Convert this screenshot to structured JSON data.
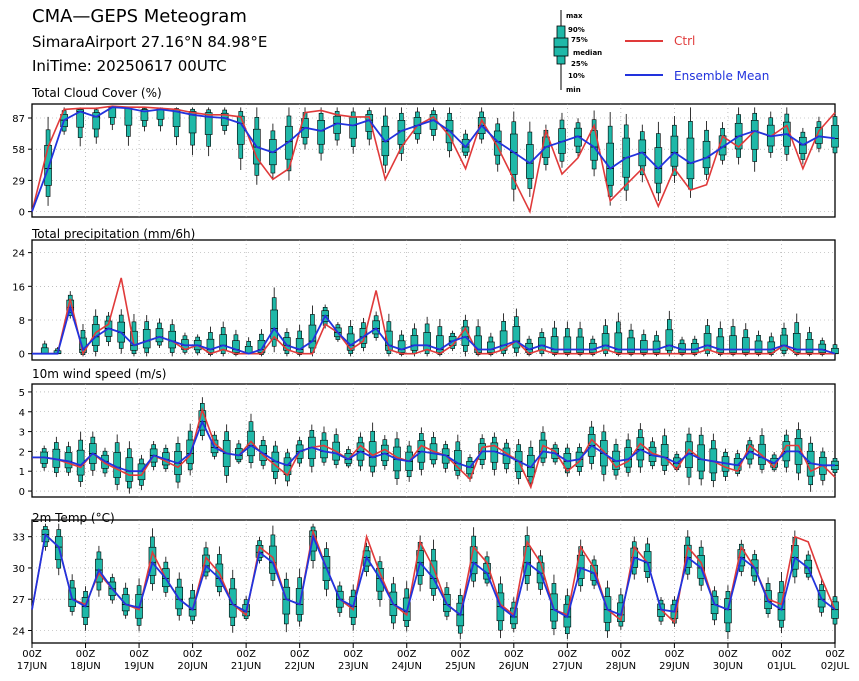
{
  "header": {
    "title": "CMA—GEPS Meteogram",
    "location": "SimaraAirport 27.16°N 84.98°E",
    "init_time": "IniTime: 20250617 00UTC"
  },
  "legend": {
    "ctrl": "Ctrl",
    "ensemble_mean": "Ensemble Mean",
    "box_labels": [
      "max",
      "90%",
      "75%",
      "median",
      "25%",
      "10%",
      "min"
    ],
    "ctrl_color": "#e03a3a",
    "mean_color": "#2233dd",
    "box_color": "#1fb8a8"
  },
  "x_axis": {
    "hours": [
      "00Z",
      "00Z",
      "00Z",
      "00Z",
      "00Z",
      "00Z",
      "00Z",
      "00Z",
      "00Z",
      "00Z",
      "00Z",
      "00Z",
      "00Z",
      "00Z",
      "00Z",
      "00Z"
    ],
    "dates": [
      "17JUN",
      "18JUN",
      "19JUN",
      "20JUN",
      "21JUN",
      "22JUN",
      "23JUN",
      "24JUN",
      "25JUN",
      "26JUN",
      "27JUN",
      "28JUN",
      "29JUN",
      "30JUN",
      "01JUL",
      "02JUL"
    ]
  },
  "chart_data": [
    {
      "type": "box",
      "title": "Total Cloud Cover (%)",
      "yticks": [
        0,
        29,
        58,
        87
      ],
      "ylim": [
        -5,
        100
      ],
      "ctrl": [
        0,
        60,
        95,
        96,
        96,
        98,
        97,
        97,
        96,
        95,
        92,
        90,
        90,
        88,
        50,
        30,
        40,
        92,
        94,
        90,
        88,
        88,
        30,
        60,
        80,
        88,
        70,
        40,
        85,
        60,
        30,
        0,
        75,
        35,
        50,
        80,
        10,
        25,
        40,
        5,
        40,
        20,
        25,
        70,
        60,
        75,
        70,
        80,
        40,
        75,
        92
      ],
      "mean": [
        0,
        40,
        85,
        93,
        88,
        97,
        96,
        93,
        95,
        93,
        90,
        88,
        87,
        82,
        60,
        55,
        65,
        78,
        75,
        82,
        80,
        85,
        65,
        75,
        80,
        85,
        75,
        60,
        80,
        65,
        55,
        45,
        60,
        65,
        70,
        60,
        40,
        50,
        55,
        40,
        55,
        45,
        50,
        60,
        70,
        75,
        70,
        72,
        62,
        70,
        68
      ]
    },
    {
      "type": "box",
      "title": "Total precipitation (mm/6h)",
      "yticks": [
        0,
        8,
        16,
        24
      ],
      "ylim": [
        -1.5,
        27
      ],
      "ctrl": [
        0,
        0,
        0,
        13,
        0,
        5,
        7,
        18,
        2,
        3,
        4,
        3,
        1,
        2,
        0,
        1,
        0,
        0,
        0,
        4,
        1,
        0,
        0,
        7,
        5,
        1,
        3,
        15,
        1,
        0,
        0,
        1,
        0,
        2,
        6,
        0,
        0,
        1,
        3,
        0,
        1,
        0,
        0,
        0,
        0,
        1,
        0,
        0,
        0,
        0,
        0,
        0,
        0,
        1,
        0,
        0,
        0,
        0,
        0,
        2,
        0,
        0,
        0,
        0
      ],
      "mean": [
        0,
        0,
        0,
        11,
        1,
        4,
        6,
        5,
        2,
        3,
        4,
        3,
        2,
        2,
        1,
        2,
        1,
        0,
        1,
        6,
        2,
        1,
        3,
        9,
        5,
        2,
        4,
        6,
        2,
        1,
        2,
        2,
        1,
        3,
        4,
        1,
        1,
        2,
        3,
        1,
        2,
        1,
        1,
        1,
        1,
        2,
        1,
        1,
        1,
        1,
        2,
        1,
        1,
        2,
        1,
        1,
        1,
        1,
        1,
        2,
        1,
        1,
        1,
        0
      ]
    },
    {
      "type": "box",
      "title": "10m wind speed (m/s)",
      "yticks": [
        0,
        1,
        2,
        3,
        4,
        5
      ],
      "ylim": [
        -0.3,
        5.4
      ],
      "ctrl": [
        1.7,
        1.7,
        1.6,
        1.4,
        1.2,
        1.9,
        1.4,
        1.1,
        0.8,
        0.8,
        1.8,
        1.5,
        1.2,
        1.8,
        4.1,
        2.4,
        1.9,
        1.8,
        2.5,
        1.8,
        1.3,
        0.8,
        2.0,
        2.2,
        2.3,
        2.0,
        1.6,
        2.3,
        1.8,
        2.1,
        1.7,
        1.5,
        2.3,
        2.0,
        1.8,
        1.2,
        0.6,
        2.2,
        2.3,
        1.9,
        1.5,
        0.2,
        2.3,
        2.0,
        1.0,
        1.5,
        2.6,
        2.0,
        1.2,
        1.5,
        2.4,
        1.9,
        1.7,
        1.1,
        2.1,
        1.6,
        1.5,
        1.2,
        1.0,
        2.3,
        1.8,
        1.2,
        2.3,
        2.3,
        1.0,
        1.3,
        0.7
      ],
      "mean": [
        1.7,
        1.7,
        1.6,
        1.5,
        1.3,
        1.9,
        1.5,
        1.2,
        1.0,
        1.0,
        1.8,
        1.6,
        1.4,
        1.9,
        3.5,
        2.2,
        1.9,
        1.8,
        2.3,
        1.9,
        1.5,
        1.3,
        2.0,
        2.2,
        2.0,
        1.9,
        1.6,
        2.0,
        1.7,
        1.9,
        1.6,
        1.5,
        2.0,
        1.9,
        1.8,
        1.4,
        1.2,
        2.0,
        2.0,
        1.8,
        1.5,
        1.2,
        2.0,
        1.9,
        1.5,
        1.6,
        2.3,
        1.9,
        1.5,
        1.6,
        2.1,
        1.8,
        1.7,
        1.4,
        1.9,
        1.6,
        1.5,
        1.4,
        1.3,
        2.0,
        1.7,
        1.4,
        2.0,
        2.0,
        1.4,
        1.3,
        1.3
      ]
    },
    {
      "type": "box",
      "title": "2m Temp (°C)",
      "yticks": [
        24,
        27,
        30,
        33
      ],
      "ylim": [
        22.8,
        34.6
      ],
      "ctrl": [
        26.0,
        33.2,
        32.0,
        27.0,
        26.5,
        29.5,
        28.0,
        26.5,
        26.0,
        31.5,
        29.0,
        27.0,
        26.0,
        31.0,
        29.5,
        26.5,
        25.5,
        32.0,
        31.0,
        27.0,
        26.5,
        33.5,
        30.0,
        27.0,
        26.0,
        33.0,
        29.5,
        26.5,
        25.5,
        32.5,
        30.0,
        26.5,
        25.5,
        32.0,
        30.5,
        26.5,
        25.5,
        32.5,
        30.5,
        26.0,
        25.5,
        32.0,
        30.0,
        26.0,
        25.0,
        32.0,
        30.5,
        26.0,
        24.8,
        32.0,
        30.5,
        26.5,
        26.0,
        32.0,
        30.0,
        27.0,
        26.5,
        33.0,
        32.5,
        29.0,
        26.0
      ],
      "mean": [
        26.0,
        33.2,
        32.0,
        27.0,
        26.3,
        29.8,
        28.0,
        26.5,
        26.2,
        30.5,
        29.0,
        27.0,
        26.0,
        30.2,
        29.0,
        26.5,
        25.8,
        31.5,
        30.5,
        27.0,
        26.5,
        33.0,
        30.0,
        27.0,
        26.3,
        31.0,
        29.0,
        26.5,
        25.8,
        30.5,
        29.0,
        26.5,
        25.5,
        30.5,
        29.5,
        26.3,
        25.3,
        30.5,
        29.5,
        26.0,
        25.3,
        30.0,
        29.5,
        26.0,
        25.5,
        31.0,
        30.5,
        26.0,
        25.8,
        31.0,
        30.0,
        26.5,
        26.0,
        31.0,
        30.0,
        26.8,
        26.0,
        31.0,
        30.0,
        27.0,
        26.0
      ]
    }
  ]
}
